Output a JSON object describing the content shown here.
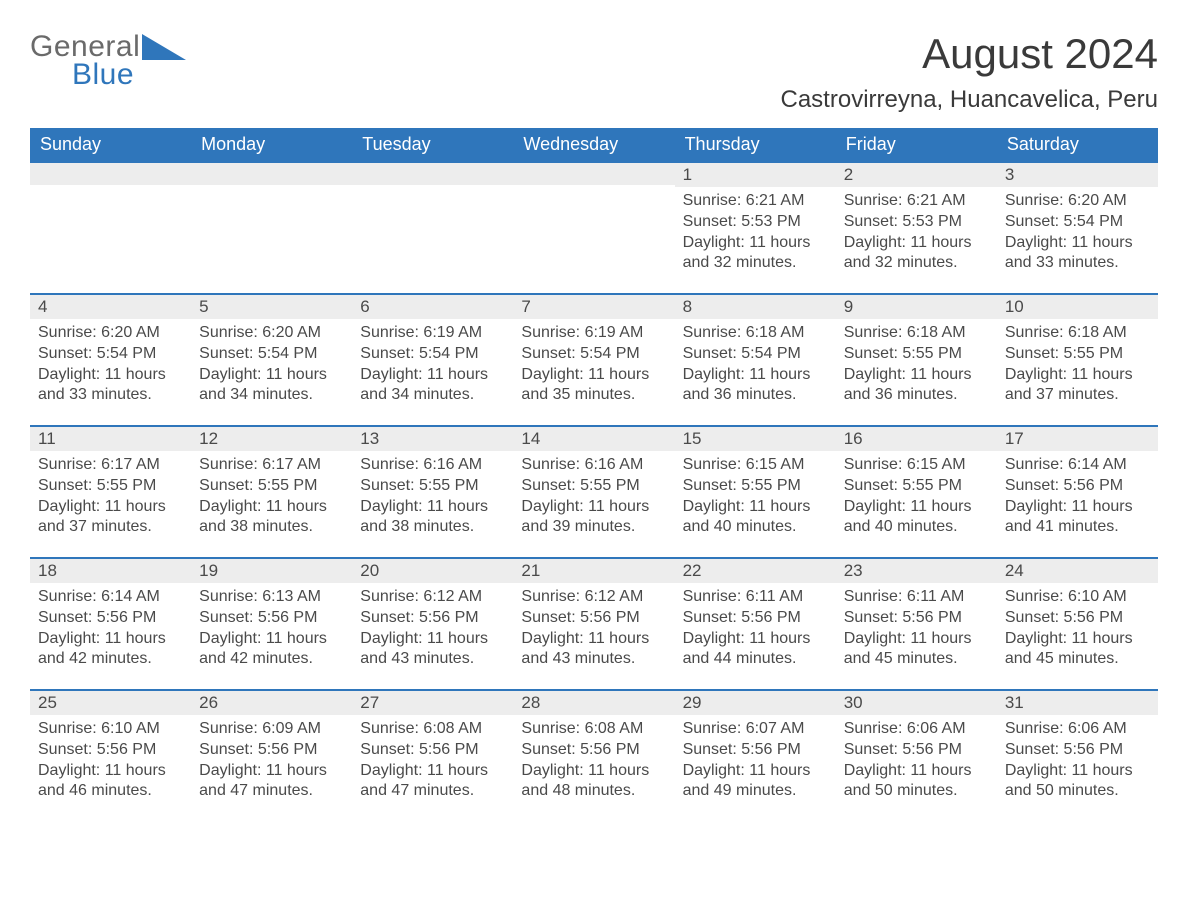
{
  "logo": {
    "general": "General",
    "blue": "Blue",
    "tri_color": "#2f76bb"
  },
  "title": "August 2024",
  "location": "Castrovirreyna, Huancavelica, Peru",
  "colors": {
    "header_bg": "#2f76bb",
    "header_text": "#ffffff",
    "daynum_bg": "#ededed",
    "daynum_border": "#2f76bb",
    "body_text": "#4a4a4a",
    "page_bg": "#ffffff"
  },
  "fonts": {
    "title_size": 42,
    "location_size": 24,
    "th_size": 18,
    "cell_size": 16
  },
  "weekdays": [
    "Sunday",
    "Monday",
    "Tuesday",
    "Wednesday",
    "Thursday",
    "Friday",
    "Saturday"
  ],
  "weeks": [
    [
      null,
      null,
      null,
      null,
      {
        "n": "1",
        "sunrise": "Sunrise: 6:21 AM",
        "sunset": "Sunset: 5:53 PM",
        "day1": "Daylight: 11 hours",
        "day2": "and 32 minutes."
      },
      {
        "n": "2",
        "sunrise": "Sunrise: 6:21 AM",
        "sunset": "Sunset: 5:53 PM",
        "day1": "Daylight: 11 hours",
        "day2": "and 32 minutes."
      },
      {
        "n": "3",
        "sunrise": "Sunrise: 6:20 AM",
        "sunset": "Sunset: 5:54 PM",
        "day1": "Daylight: 11 hours",
        "day2": "and 33 minutes."
      }
    ],
    [
      {
        "n": "4",
        "sunrise": "Sunrise: 6:20 AM",
        "sunset": "Sunset: 5:54 PM",
        "day1": "Daylight: 11 hours",
        "day2": "and 33 minutes."
      },
      {
        "n": "5",
        "sunrise": "Sunrise: 6:20 AM",
        "sunset": "Sunset: 5:54 PM",
        "day1": "Daylight: 11 hours",
        "day2": "and 34 minutes."
      },
      {
        "n": "6",
        "sunrise": "Sunrise: 6:19 AM",
        "sunset": "Sunset: 5:54 PM",
        "day1": "Daylight: 11 hours",
        "day2": "and 34 minutes."
      },
      {
        "n": "7",
        "sunrise": "Sunrise: 6:19 AM",
        "sunset": "Sunset: 5:54 PM",
        "day1": "Daylight: 11 hours",
        "day2": "and 35 minutes."
      },
      {
        "n": "8",
        "sunrise": "Sunrise: 6:18 AM",
        "sunset": "Sunset: 5:54 PM",
        "day1": "Daylight: 11 hours",
        "day2": "and 36 minutes."
      },
      {
        "n": "9",
        "sunrise": "Sunrise: 6:18 AM",
        "sunset": "Sunset: 5:55 PM",
        "day1": "Daylight: 11 hours",
        "day2": "and 36 minutes."
      },
      {
        "n": "10",
        "sunrise": "Sunrise: 6:18 AM",
        "sunset": "Sunset: 5:55 PM",
        "day1": "Daylight: 11 hours",
        "day2": "and 37 minutes."
      }
    ],
    [
      {
        "n": "11",
        "sunrise": "Sunrise: 6:17 AM",
        "sunset": "Sunset: 5:55 PM",
        "day1": "Daylight: 11 hours",
        "day2": "and 37 minutes."
      },
      {
        "n": "12",
        "sunrise": "Sunrise: 6:17 AM",
        "sunset": "Sunset: 5:55 PM",
        "day1": "Daylight: 11 hours",
        "day2": "and 38 minutes."
      },
      {
        "n": "13",
        "sunrise": "Sunrise: 6:16 AM",
        "sunset": "Sunset: 5:55 PM",
        "day1": "Daylight: 11 hours",
        "day2": "and 38 minutes."
      },
      {
        "n": "14",
        "sunrise": "Sunrise: 6:16 AM",
        "sunset": "Sunset: 5:55 PM",
        "day1": "Daylight: 11 hours",
        "day2": "and 39 minutes."
      },
      {
        "n": "15",
        "sunrise": "Sunrise: 6:15 AM",
        "sunset": "Sunset: 5:55 PM",
        "day1": "Daylight: 11 hours",
        "day2": "and 40 minutes."
      },
      {
        "n": "16",
        "sunrise": "Sunrise: 6:15 AM",
        "sunset": "Sunset: 5:55 PM",
        "day1": "Daylight: 11 hours",
        "day2": "and 40 minutes."
      },
      {
        "n": "17",
        "sunrise": "Sunrise: 6:14 AM",
        "sunset": "Sunset: 5:56 PM",
        "day1": "Daylight: 11 hours",
        "day2": "and 41 minutes."
      }
    ],
    [
      {
        "n": "18",
        "sunrise": "Sunrise: 6:14 AM",
        "sunset": "Sunset: 5:56 PM",
        "day1": "Daylight: 11 hours",
        "day2": "and 42 minutes."
      },
      {
        "n": "19",
        "sunrise": "Sunrise: 6:13 AM",
        "sunset": "Sunset: 5:56 PM",
        "day1": "Daylight: 11 hours",
        "day2": "and 42 minutes."
      },
      {
        "n": "20",
        "sunrise": "Sunrise: 6:12 AM",
        "sunset": "Sunset: 5:56 PM",
        "day1": "Daylight: 11 hours",
        "day2": "and 43 minutes."
      },
      {
        "n": "21",
        "sunrise": "Sunrise: 6:12 AM",
        "sunset": "Sunset: 5:56 PM",
        "day1": "Daylight: 11 hours",
        "day2": "and 43 minutes."
      },
      {
        "n": "22",
        "sunrise": "Sunrise: 6:11 AM",
        "sunset": "Sunset: 5:56 PM",
        "day1": "Daylight: 11 hours",
        "day2": "and 44 minutes."
      },
      {
        "n": "23",
        "sunrise": "Sunrise: 6:11 AM",
        "sunset": "Sunset: 5:56 PM",
        "day1": "Daylight: 11 hours",
        "day2": "and 45 minutes."
      },
      {
        "n": "24",
        "sunrise": "Sunrise: 6:10 AM",
        "sunset": "Sunset: 5:56 PM",
        "day1": "Daylight: 11 hours",
        "day2": "and 45 minutes."
      }
    ],
    [
      {
        "n": "25",
        "sunrise": "Sunrise: 6:10 AM",
        "sunset": "Sunset: 5:56 PM",
        "day1": "Daylight: 11 hours",
        "day2": "and 46 minutes."
      },
      {
        "n": "26",
        "sunrise": "Sunrise: 6:09 AM",
        "sunset": "Sunset: 5:56 PM",
        "day1": "Daylight: 11 hours",
        "day2": "and 47 minutes."
      },
      {
        "n": "27",
        "sunrise": "Sunrise: 6:08 AM",
        "sunset": "Sunset: 5:56 PM",
        "day1": "Daylight: 11 hours",
        "day2": "and 47 minutes."
      },
      {
        "n": "28",
        "sunrise": "Sunrise: 6:08 AM",
        "sunset": "Sunset: 5:56 PM",
        "day1": "Daylight: 11 hours",
        "day2": "and 48 minutes."
      },
      {
        "n": "29",
        "sunrise": "Sunrise: 6:07 AM",
        "sunset": "Sunset: 5:56 PM",
        "day1": "Daylight: 11 hours",
        "day2": "and 49 minutes."
      },
      {
        "n": "30",
        "sunrise": "Sunrise: 6:06 AM",
        "sunset": "Sunset: 5:56 PM",
        "day1": "Daylight: 11 hours",
        "day2": "and 50 minutes."
      },
      {
        "n": "31",
        "sunrise": "Sunrise: 6:06 AM",
        "sunset": "Sunset: 5:56 PM",
        "day1": "Daylight: 11 hours",
        "day2": "and 50 minutes."
      }
    ]
  ]
}
